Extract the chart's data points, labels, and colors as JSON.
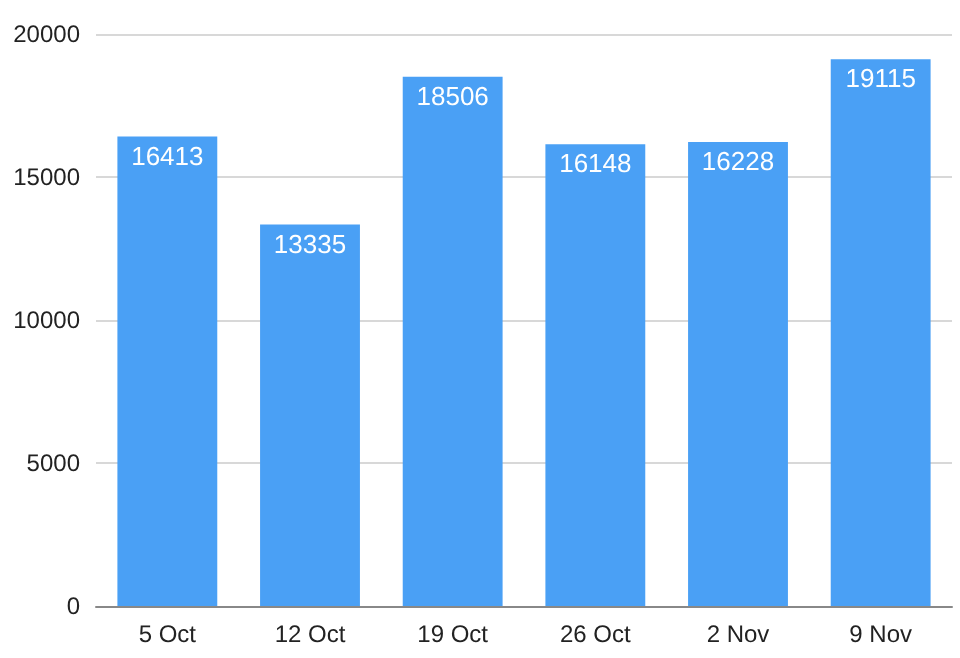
{
  "chart_data": {
    "type": "bar",
    "categories": [
      "5 Oct",
      "12 Oct",
      "19 Oct",
      "26 Oct",
      "2 Nov",
      "9 Nov"
    ],
    "values": [
      16413,
      13335,
      18506,
      16148,
      16228,
      19115
    ],
    "color": "#4aa0f5",
    "ylim": [
      0,
      20000
    ],
    "yticks": [
      0,
      5000,
      10000,
      15000,
      20000
    ],
    "grid": "y",
    "data_labels": true
  }
}
